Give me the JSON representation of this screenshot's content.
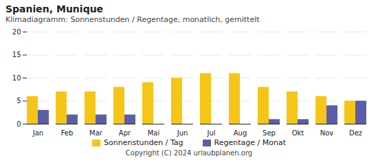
{
  "chart_data": {
    "type": "bar",
    "title": "Spanien, Munique",
    "subtitle": "Klimadiagramm: Sonnenstunden / Regentage, monatlich, gemittelt",
    "caption": "Copyright (C) 2024 urlaubplanen.org",
    "categories": [
      "Jan",
      "Feb",
      "Mar",
      "Apr",
      "Mai",
      "Jun",
      "Jul",
      "Aug",
      "Sep",
      "Okt",
      "Nov",
      "Dez"
    ],
    "series": [
      {
        "name": "Sonnenstunden / Tag",
        "color": "#F5C518",
        "values": [
          6,
          7,
          7,
          8,
          9,
          10,
          11,
          11,
          8,
          7,
          6,
          5
        ]
      },
      {
        "name": "Regentage / Monat",
        "color": "#5B5EA6",
        "values": [
          3,
          2,
          2,
          2,
          0,
          0,
          0,
          0,
          1,
          1,
          4,
          5
        ]
      }
    ],
    "ylim": [
      0,
      20
    ],
    "yticks": [
      0,
      5,
      10,
      15,
      20
    ],
    "grid": true,
    "legend": "bottom"
  }
}
